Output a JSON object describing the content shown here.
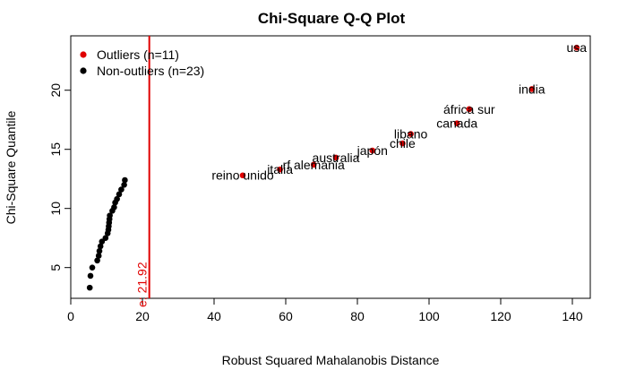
{
  "chart_data": {
    "type": "scatter",
    "title": "Chi-Square Q-Q Plot",
    "xlabel": "Robust Squared Mahalanobis Distance",
    "ylabel": "Chi-Square Quantile",
    "xlim": [
      0,
      145
    ],
    "ylim": [
      2.4,
      24.6
    ],
    "xticks": [
      0,
      20,
      40,
      60,
      80,
      100,
      120,
      140
    ],
    "yticks": [
      5,
      10,
      15,
      20
    ],
    "grid": false,
    "legend_position": "top-left",
    "cutoff": {
      "x": 21.92,
      "label": "e: 21.92",
      "color": "#e00000"
    },
    "series": [
      {
        "name": "Outliers (n=11)",
        "color": "#e00000",
        "points": [
          {
            "x": 141.2,
            "y": 23.6,
            "label": "usa"
          },
          {
            "x": 128.7,
            "y": 20.1,
            "label": "india"
          },
          {
            "x": 111.2,
            "y": 18.4,
            "label": "áfrica sur"
          },
          {
            "x": 107.8,
            "y": 17.2,
            "label": "canada"
          },
          {
            "x": 94.9,
            "y": 16.3,
            "label": "libano"
          },
          {
            "x": 92.6,
            "y": 15.5,
            "label": "chile"
          },
          {
            "x": 84.2,
            "y": 14.9,
            "label": "japón"
          },
          {
            "x": 74.0,
            "y": 14.3,
            "label": "australia"
          },
          {
            "x": 67.8,
            "y": 13.7,
            "label": "rf alemania"
          },
          {
            "x": 58.4,
            "y": 13.3,
            "label": "italia"
          },
          {
            "x": 48.0,
            "y": 12.8,
            "label": "reino unido"
          }
        ]
      },
      {
        "name": "Non-outliers (n=23)",
        "color": "#000000",
        "points": [
          {
            "x": 5.3,
            "y": 3.3
          },
          {
            "x": 5.5,
            "y": 4.3
          },
          {
            "x": 6.0,
            "y": 5.0
          },
          {
            "x": 7.4,
            "y": 5.6
          },
          {
            "x": 7.8,
            "y": 6.0
          },
          {
            "x": 8.0,
            "y": 6.4
          },
          {
            "x": 8.3,
            "y": 6.8
          },
          {
            "x": 8.7,
            "y": 7.2
          },
          {
            "x": 9.7,
            "y": 7.5
          },
          {
            "x": 10.3,
            "y": 7.9
          },
          {
            "x": 10.5,
            "y": 8.2
          },
          {
            "x": 10.6,
            "y": 8.5
          },
          {
            "x": 10.7,
            "y": 8.8
          },
          {
            "x": 10.8,
            "y": 9.1
          },
          {
            "x": 10.9,
            "y": 9.4
          },
          {
            "x": 11.6,
            "y": 9.8
          },
          {
            "x": 12.1,
            "y": 10.1
          },
          {
            "x": 12.4,
            "y": 10.5
          },
          {
            "x": 12.9,
            "y": 10.8
          },
          {
            "x": 13.5,
            "y": 11.2
          },
          {
            "x": 14.1,
            "y": 11.6
          },
          {
            "x": 14.9,
            "y": 12.0
          },
          {
            "x": 15.1,
            "y": 12.4
          }
        ]
      }
    ]
  }
}
